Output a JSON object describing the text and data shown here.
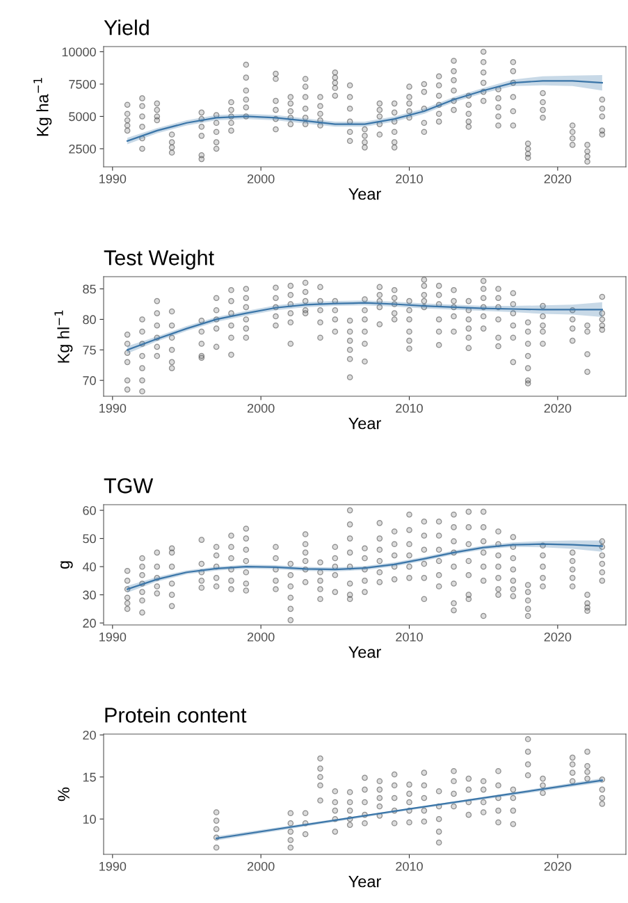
{
  "chart_data": [
    {
      "type": "scatter",
      "title": "Yield",
      "xlabel": "Year",
      "ylabel": "Kg ha$^{−1}$",
      "xlim": [
        1989.4,
        2024.6
      ],
      "xticks": [
        1990,
        2000,
        2010,
        2020
      ],
      "ylim": [
        1100,
        10400
      ],
      "yticks": [
        2500,
        5000,
        7500,
        10000
      ],
      "series": [
        {
          "color": "#4d4d4d",
          "marker": "circle",
          "x": [
            1991,
            1991,
            1991,
            1991,
            1991,
            1992,
            1992,
            1992,
            1992,
            1992,
            1992,
            1993,
            1993,
            1993,
            1993,
            1994,
            1994,
            1994,
            1994,
            1996,
            1996,
            1996,
            1996,
            1996,
            1996,
            1997,
            1997,
            1997,
            1997,
            1997,
            1998,
            1998,
            1998,
            1998,
            1998,
            1999,
            1999,
            1999,
            1999,
            1999,
            1999,
            2001,
            2001,
            2001,
            2001,
            2001,
            2001,
            2002,
            2002,
            2002,
            2002,
            2002,
            2003,
            2003,
            2003,
            2003,
            2003,
            2003,
            2004,
            2004,
            2004,
            2004,
            2004,
            2005,
            2005,
            2005,
            2005,
            2005,
            2006,
            2006,
            2006,
            2006,
            2006,
            2006,
            2007,
            2007,
            2007,
            2007,
            2008,
            2008,
            2008,
            2008,
            2008,
            2009,
            2009,
            2009,
            2009,
            2009,
            2009,
            2010,
            2010,
            2010,
            2010,
            2010,
            2011,
            2011,
            2011,
            2011,
            2011,
            2012,
            2012,
            2012,
            2012,
            2012,
            2012,
            2013,
            2013,
            2013,
            2013,
            2013,
            2013,
            2014,
            2014,
            2014,
            2014,
            2014,
            2015,
            2015,
            2015,
            2015,
            2015,
            2015,
            2016,
            2016,
            2016,
            2016,
            2016,
            2017,
            2017,
            2017,
            2017,
            2017,
            2017,
            2018,
            2018,
            2018,
            2018,
            2019,
            2019,
            2019,
            2019,
            2021,
            2021,
            2021,
            2021,
            2022,
            2022,
            2022,
            2022,
            2023,
            2023,
            2023,
            2023,
            2023
          ],
          "values": [
            5900,
            5200,
            4700,
            4300,
            3900,
            6400,
            5800,
            5000,
            4200,
            3300,
            2500,
            6000,
            5500,
            5000,
            4700,
            3600,
            3000,
            2600,
            2200,
            5300,
            4800,
            4200,
            3500,
            2000,
            1700,
            5100,
            4500,
            3800,
            3000,
            2500,
            6100,
            5500,
            5000,
            4500,
            3900,
            9000,
            8000,
            7000,
            6300,
            5700,
            5000,
            8300,
            7900,
            6200,
            5500,
            4800,
            4000,
            6500,
            6000,
            5400,
            4900,
            4400,
            7900,
            7300,
            6500,
            5600,
            4900,
            4400,
            6500,
            5800,
            5200,
            4700,
            4300,
            8400,
            8000,
            7600,
            7200,
            6600,
            7400,
            6500,
            5600,
            4600,
            3800,
            3100,
            4000,
            3500,
            3000,
            2600,
            6000,
            5500,
            5000,
            4400,
            3600,
            6000,
            5300,
            4600,
            3800,
            3000,
            2600,
            7300,
            6500,
            6000,
            5400,
            4900,
            7500,
            6900,
            5600,
            4500,
            3800,
            8100,
            7400,
            6600,
            5900,
            5200,
            4600,
            9300,
            8500,
            7800,
            7000,
            6200,
            5500,
            6600,
            5900,
            5200,
            4600,
            4200,
            10000,
            9200,
            8400,
            7600,
            6900,
            6200,
            7100,
            6400,
            5700,
            5000,
            4300,
            9200,
            8500,
            7600,
            6500,
            5400,
            4300,
            2900,
            2500,
            2100,
            1800,
            6800,
            6100,
            5500,
            4900,
            4300,
            3800,
            3300,
            2800,
            2800,
            2300,
            1900,
            1500,
            6300,
            5600,
            5000,
            3900,
            3600
          ]
        },
        {
          "type": "line",
          "color": "#3a75a8",
          "x": [
            1991,
            1993,
            1995,
            1997,
            1999,
            2001,
            2003,
            2005,
            2007,
            2009,
            2011,
            2013,
            2015,
            2017,
            2019,
            2021,
            2023
          ],
          "values": [
            3100,
            3900,
            4500,
            4900,
            5000,
            4900,
            4650,
            4400,
            4400,
            4800,
            5400,
            6300,
            7000,
            7600,
            7750,
            7750,
            7600
          ],
          "lower": [
            2850,
            3700,
            4300,
            4700,
            4800,
            4700,
            4450,
            4200,
            4200,
            4600,
            5200,
            6100,
            6800,
            7350,
            7400,
            7350,
            7000
          ],
          "upper": [
            3350,
            4100,
            4700,
            5100,
            5200,
            5100,
            4850,
            4600,
            4600,
            5000,
            5600,
            6500,
            7200,
            7850,
            8100,
            8150,
            8200
          ]
        }
      ]
    },
    {
      "type": "scatter",
      "title": "Test Weight",
      "xlabel": "Year",
      "ylabel": "Kg hl$^{−1}$",
      "xlim": [
        1989.4,
        2024.6
      ],
      "xticks": [
        1990,
        2000,
        2010,
        2020
      ],
      "ylim": [
        67.4,
        87
      ],
      "yticks": [
        70,
        75,
        80,
        85
      ],
      "series": [
        {
          "color": "#4d4d4d",
          "marker": "circle",
          "x": [
            1991,
            1991,
            1991,
            1991,
            1991,
            1991,
            1992,
            1992,
            1992,
            1992,
            1992,
            1992,
            1992,
            1993,
            1993,
            1993,
            1993,
            1993,
            1993,
            1994,
            1994,
            1994,
            1994,
            1994,
            1994,
            1996,
            1996,
            1996,
            1996,
            1996,
            1997,
            1997,
            1997,
            1997,
            1997,
            1998,
            1998,
            1998,
            1998,
            1998,
            1998,
            1999,
            1999,
            1999,
            1999,
            1999,
            1999,
            2001,
            2001,
            2001,
            2001,
            2001,
            2002,
            2002,
            2002,
            2002,
            2002,
            2002,
            2003,
            2003,
            2003,
            2003,
            2003,
            2004,
            2004,
            2004,
            2004,
            2004,
            2005,
            2005,
            2005,
            2005,
            2006,
            2006,
            2006,
            2006,
            2006,
            2006,
            2007,
            2007,
            2007,
            2007,
            2007,
            2007,
            2008,
            2008,
            2008,
            2008,
            2008,
            2009,
            2009,
            2009,
            2009,
            2009,
            2010,
            2010,
            2010,
            2010,
            2010,
            2010,
            2011,
            2011,
            2011,
            2011,
            2011,
            2012,
            2012,
            2012,
            2012,
            2012,
            2012,
            2013,
            2013,
            2013,
            2013,
            2013,
            2014,
            2014,
            2014,
            2014,
            2014,
            2014,
            2015,
            2015,
            2015,
            2015,
            2015,
            2015,
            2016,
            2016,
            2016,
            2016,
            2016,
            2016,
            2017,
            2017,
            2017,
            2017,
            2017,
            2017,
            2018,
            2018,
            2018,
            2018,
            2018,
            2018,
            2018,
            2019,
            2019,
            2019,
            2019,
            2019,
            2021,
            2021,
            2021,
            2021,
            2022,
            2022,
            2022,
            2022,
            2023,
            2023,
            2023,
            2023,
            2023
          ],
          "values": [
            77.5,
            76,
            74.5,
            73,
            70,
            68.5,
            80,
            78,
            76,
            74,
            72,
            70,
            68.2,
            83,
            81,
            79,
            77,
            75.5,
            74,
            81.3,
            79,
            77,
            75,
            73,
            72,
            79.8,
            78,
            76,
            74,
            73.7,
            83.5,
            81.5,
            80,
            78.5,
            75.5,
            84.8,
            83,
            81,
            79,
            77,
            74.2,
            85,
            83.5,
            82,
            80,
            78.5,
            77,
            85.2,
            83.5,
            82,
            80.5,
            79,
            85.5,
            84,
            82.5,
            81,
            79.5,
            76,
            86,
            84.5,
            83,
            81.5,
            81,
            85.3,
            83,
            81.5,
            79.5,
            77,
            83,
            81.5,
            80,
            78,
            79.8,
            78,
            76.5,
            75,
            73.5,
            70.5,
            83.3,
            81.5,
            80,
            78,
            76,
            73.1,
            85.3,
            84,
            83,
            82,
            79.2,
            84.8,
            83.5,
            82.5,
            81,
            80,
            83,
            81.5,
            80,
            78,
            76.5,
            75.2,
            86.5,
            85.5,
            84,
            83,
            82,
            85.5,
            84,
            82.5,
            80,
            78,
            75.8,
            84.8,
            83,
            82,
            80.5,
            78,
            83,
            81.5,
            80,
            78.5,
            77,
            75.3,
            86.3,
            85,
            83.5,
            82,
            80.5,
            78.5,
            85,
            83.5,
            82,
            80,
            77,
            75.6,
            84.3,
            82.5,
            81,
            79,
            77,
            73,
            79.5,
            78,
            76,
            74,
            72,
            70,
            69.5,
            82.2,
            80.5,
            79,
            78,
            76,
            81.5,
            80,
            78.5,
            76.5,
            79,
            78,
            74.3,
            71.4,
            83.7,
            81,
            80,
            79,
            78.3
          ]
        },
        {
          "type": "line",
          "color": "#3a75a8",
          "x": [
            1991,
            1993,
            1995,
            1997,
            1999,
            2001,
            2003,
            2005,
            2007,
            2009,
            2011,
            2013,
            2015,
            2017,
            2019,
            2021,
            2023
          ],
          "values": [
            75,
            76.8,
            78.5,
            80,
            81,
            81.9,
            82.4,
            82.6,
            82.7,
            82.5,
            82.2,
            82,
            81.8,
            81.7,
            81.6,
            81.6,
            81.6
          ],
          "lower": [
            74.4,
            76.4,
            78.1,
            79.6,
            80.6,
            81.5,
            82,
            82.2,
            82.3,
            82.1,
            81.8,
            81.6,
            81.4,
            81.2,
            80.9,
            80.8,
            80.4
          ],
          "upper": [
            75.6,
            77.2,
            78.9,
            80.4,
            81.4,
            82.3,
            82.8,
            83,
            83.1,
            82.9,
            82.6,
            82.4,
            82.2,
            82.2,
            82.3,
            82.4,
            82.8
          ]
        }
      ]
    },
    {
      "type": "scatter",
      "title": "TGW",
      "xlabel": "Year",
      "ylabel": "g",
      "xlim": [
        1989.4,
        2024.6
      ],
      "xticks": [
        1990,
        2000,
        2010,
        2020
      ],
      "ylim": [
        19.3,
        62
      ],
      "yticks": [
        20,
        30,
        40,
        50,
        60
      ],
      "series": [
        {
          "color": "#4d4d4d",
          "marker": "circle",
          "x": [
            1991,
            1991,
            1991,
            1991,
            1991,
            1991,
            1992,
            1992,
            1992,
            1992,
            1992,
            1992,
            1992,
            1993,
            1993,
            1993,
            1993,
            1993,
            1994,
            1994,
            1994,
            1994,
            1994,
            1994,
            1996,
            1996,
            1996,
            1996,
            1996,
            1997,
            1997,
            1997,
            1997,
            1997,
            1998,
            1998,
            1998,
            1998,
            1998,
            1998,
            1999,
            1999,
            1999,
            1999,
            1999,
            1999,
            1999,
            2001,
            2001,
            2001,
            2001,
            2001,
            2002,
            2002,
            2002,
            2002,
            2002,
            2002,
            2003,
            2003,
            2003,
            2003,
            2003,
            2003,
            2004,
            2004,
            2004,
            2004,
            2004,
            2005,
            2005,
            2005,
            2005,
            2005,
            2006,
            2006,
            2006,
            2006,
            2006,
            2006,
            2006,
            2006,
            2007,
            2007,
            2007,
            2007,
            2007,
            2008,
            2008,
            2008,
            2008,
            2008,
            2008,
            2009,
            2009,
            2009,
            2009,
            2009,
            2010,
            2010,
            2010,
            2010,
            2010,
            2010,
            2011,
            2011,
            2011,
            2011,
            2011,
            2011,
            2012,
            2012,
            2012,
            2012,
            2012,
            2012,
            2013,
            2013,
            2013,
            2013,
            2013,
            2013,
            2013,
            2013,
            2014,
            2014,
            2014,
            2014,
            2014,
            2014,
            2014,
            2015,
            2015,
            2015,
            2015,
            2015,
            2015,
            2015,
            2016,
            2016,
            2016,
            2016,
            2016,
            2016,
            2016,
            2017,
            2017,
            2017,
            2017,
            2017,
            2017,
            2017,
            2018,
            2018,
            2018,
            2018,
            2018,
            2019,
            2019,
            2019,
            2019,
            2019,
            2021,
            2021,
            2021,
            2021,
            2021,
            2022,
            2022,
            2022,
            2022,
            2023,
            2023,
            2023,
            2023,
            2023,
            2023
          ],
          "values": [
            38.5,
            35,
            32,
            29,
            27,
            25,
            43,
            40,
            37,
            34,
            31,
            28,
            23.7,
            45,
            40,
            36,
            33,
            30.5,
            46.5,
            45,
            40,
            34,
            30,
            26,
            49.5,
            41,
            38,
            35,
            32.5,
            47,
            44,
            40,
            36,
            33,
            51,
            47,
            43,
            39,
            35,
            32,
            53.5,
            50,
            46,
            42,
            38,
            34,
            31.5,
            47,
            43,
            39,
            35,
            32,
            41,
            37,
            33,
            29,
            25,
            21,
            51.5,
            48,
            45,
            42,
            39,
            34.5,
            41.5,
            38,
            35,
            32,
            28.5,
            47,
            43,
            40,
            37,
            31,
            60,
            55,
            50,
            45,
            40,
            34,
            30,
            28.5,
            46.5,
            43,
            39,
            35,
            31,
            55.5,
            50,
            46,
            42,
            38,
            34.5,
            52.5,
            48,
            44,
            40,
            35.5,
            58.5,
            53,
            48,
            44,
            40,
            36,
            56,
            51,
            46,
            41,
            36,
            28.5,
            56,
            51,
            46,
            42,
            37,
            33,
            58.5,
            54,
            49,
            45,
            40,
            34,
            27,
            24.5,
            59.5,
            54,
            48,
            42,
            37,
            30,
            28.5,
            59.5,
            54,
            49,
            45,
            40,
            35,
            22.5,
            52.5,
            48,
            44,
            40,
            36,
            32,
            30,
            50.5,
            47,
            43,
            39,
            35,
            32,
            29.5,
            33.5,
            31,
            28,
            25,
            22.5,
            47.5,
            44,
            40,
            36,
            33,
            45,
            42,
            39,
            36,
            33,
            30,
            27,
            25.5,
            24.3,
            49,
            47,
            44,
            41,
            38,
            35
          ]
        },
        {
          "type": "line",
          "color": "#3a75a8",
          "x": [
            1991,
            1993,
            1995,
            1997,
            1999,
            2001,
            2003,
            2005,
            2007,
            2009,
            2011,
            2013,
            2015,
            2017,
            2019,
            2021,
            2023
          ],
          "values": [
            32,
            35.5,
            38,
            39.3,
            40,
            39.8,
            39.2,
            39,
            39.5,
            40.8,
            42.8,
            45,
            46.8,
            47.8,
            48,
            47.8,
            47.3
          ],
          "lower": [
            30.8,
            34.7,
            37.3,
            38.6,
            39.3,
            39.1,
            38.5,
            38.3,
            38.8,
            40.1,
            42.1,
            44.3,
            46.1,
            47,
            46.9,
            46.3,
            45.3
          ],
          "upper": [
            33.2,
            36.3,
            38.7,
            40,
            40.7,
            40.5,
            39.9,
            39.7,
            40.2,
            41.5,
            43.5,
            45.7,
            47.5,
            48.6,
            49.1,
            49.3,
            49.3
          ]
        }
      ]
    },
    {
      "type": "scatter",
      "title": "Protein content",
      "xlabel": "Year",
      "ylabel": "%",
      "xlim": [
        1989.4,
        2024.6
      ],
      "xticks": [
        1990,
        2000,
        2010,
        2020
      ],
      "ylim": [
        5.8,
        20.1
      ],
      "yticks": [
        10,
        15,
        20
      ],
      "series": [
        {
          "color": "#4d4d4d",
          "marker": "circle",
          "x": [
            1997,
            1997,
            1997,
            1997,
            1997,
            2002,
            2002,
            2002,
            2002,
            2002,
            2003,
            2003,
            2003,
            2004,
            2004,
            2004,
            2004,
            2004,
            2005,
            2005,
            2005,
            2005,
            2005,
            2006,
            2006,
            2006,
            2006,
            2006,
            2007,
            2007,
            2007,
            2007,
            2007,
            2008,
            2008,
            2008,
            2008,
            2008,
            2009,
            2009,
            2009,
            2009,
            2009,
            2010,
            2010,
            2010,
            2010,
            2010,
            2011,
            2011,
            2011,
            2011,
            2011,
            2012,
            2012,
            2012,
            2012,
            2012,
            2013,
            2013,
            2013,
            2013,
            2014,
            2014,
            2014,
            2014,
            2015,
            2015,
            2015,
            2015,
            2016,
            2016,
            2016,
            2016,
            2016,
            2017,
            2017,
            2017,
            2017,
            2018,
            2018,
            2018,
            2018,
            2019,
            2019,
            2019,
            2021,
            2021,
            2021,
            2021,
            2022,
            2022,
            2022,
            2022,
            2023,
            2023,
            2023,
            2023
          ],
          "values": [
            10.8,
            9.8,
            8.8,
            7.8,
            6.6,
            10.7,
            9.5,
            8.5,
            7.5,
            6.6,
            10.7,
            9.5,
            8.2,
            17.2,
            16,
            15,
            14,
            12.2,
            13.3,
            12,
            11,
            10,
            8.5,
            13.2,
            12,
            11,
            10,
            9.3,
            14.9,
            13.5,
            12,
            10.5,
            9.5,
            14.5,
            13.5,
            12.5,
            11.5,
            10.4,
            15.3,
            14,
            12.5,
            11,
            9.5,
            14.1,
            13,
            12,
            11,
            9.6,
            15.5,
            14,
            12.5,
            11,
            9.7,
            13.3,
            11.5,
            10,
            8.5,
            7.2,
            15.7,
            14.5,
            13,
            11.5,
            14.8,
            13.5,
            12,
            10.5,
            14.5,
            13.5,
            12,
            10.8,
            15.7,
            14,
            12.5,
            11,
            9.6,
            13.5,
            12.5,
            11,
            9.4,
            19.5,
            18,
            16.5,
            15.2,
            14.8,
            14,
            13.1,
            17.3,
            16.5,
            15.5,
            14.5,
            18,
            16.3,
            15.6,
            14.8,
            14.7,
            13.5,
            12.5,
            11.8
          ]
        },
        {
          "type": "line",
          "color": "#3a75a8",
          "x": [
            1997,
            2010,
            2023
          ],
          "values": [
            7.7,
            11.2,
            14.6
          ],
          "lower": [
            7.45,
            11.05,
            14.35
          ],
          "upper": [
            7.95,
            11.25,
            14.85
          ]
        }
      ]
    }
  ]
}
